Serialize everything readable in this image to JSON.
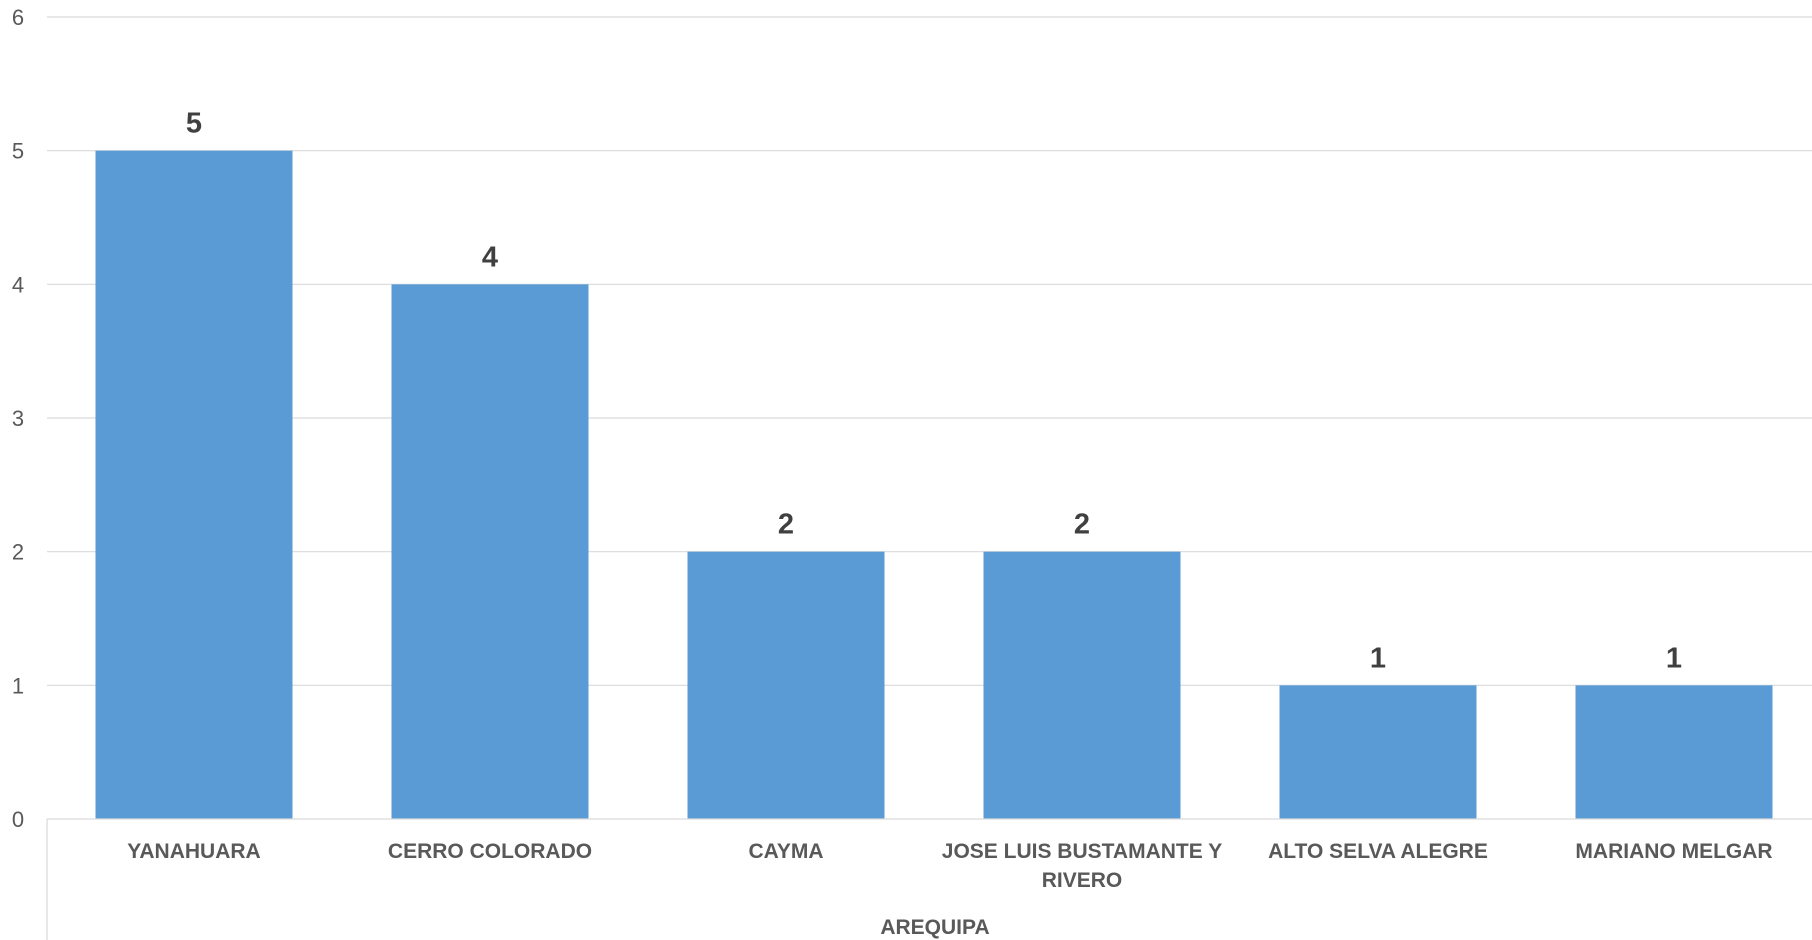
{
  "chart_data": {
    "type": "bar",
    "categories": [
      [
        "YANAHUARA"
      ],
      [
        "CERRO COLORADO"
      ],
      [
        "CAYMA"
      ],
      [
        "JOSE LUIS BUSTAMANTE Y",
        "RIVERO"
      ],
      [
        "ALTO SELVA ALEGRE"
      ],
      [
        "MARIANO MELGAR"
      ]
    ],
    "values": [
      5,
      4,
      2,
      2,
      1,
      1
    ],
    "data_labels": [
      "5",
      "4",
      "2",
      "2",
      "1",
      "1"
    ],
    "group_label": "AREQUIPA",
    "ylim": [
      0,
      6
    ],
    "yticks": [
      "0",
      "1",
      "2",
      "3",
      "4",
      "5",
      "6"
    ],
    "grid": true,
    "bar_color": "#5b9bd5"
  }
}
